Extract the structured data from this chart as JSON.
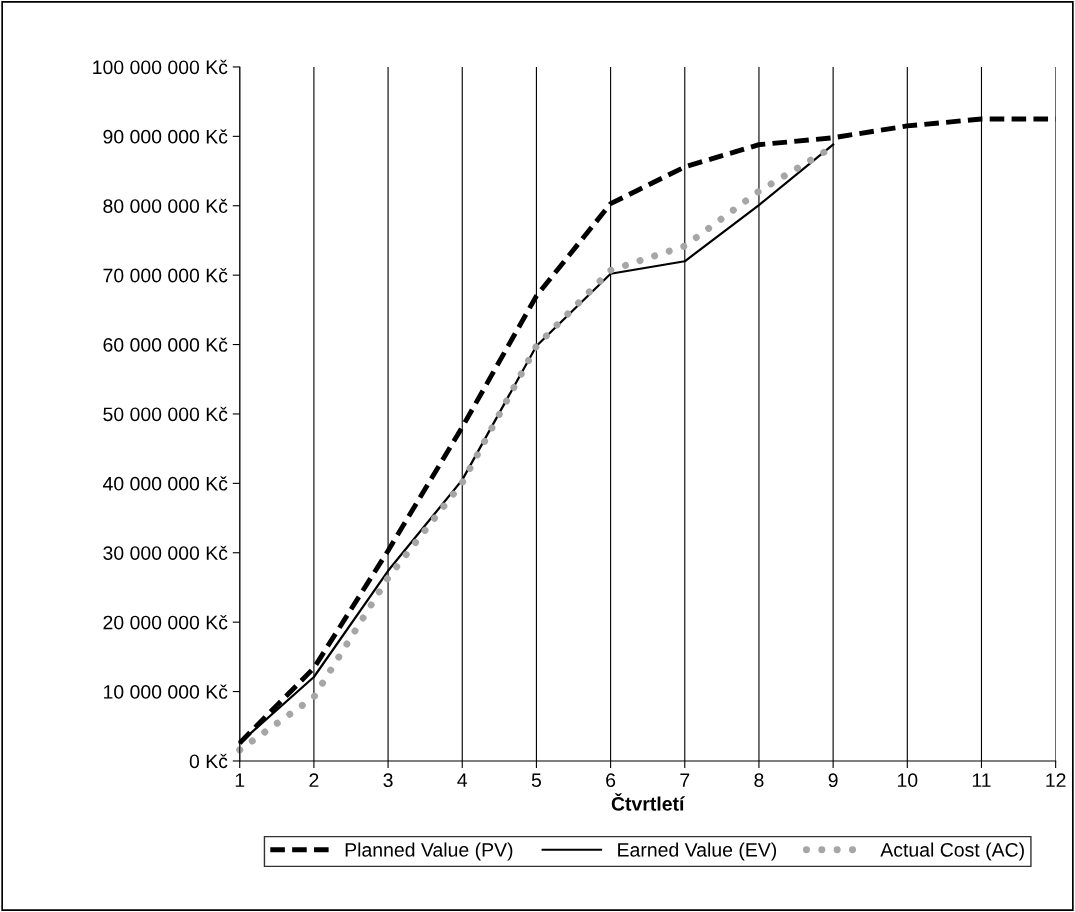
{
  "chart_data": {
    "type": "line",
    "xlabel": "Čtvrtletí",
    "x": [
      1,
      2,
      3,
      4,
      5,
      6,
      7,
      8,
      9,
      10,
      11,
      12
    ],
    "series": [
      {
        "name": "Planned Value (PV)",
        "color": "#000000",
        "line_style": "dashed",
        "values": [
          2600000,
          13400000,
          30300000,
          48100000,
          67000000,
          80300000,
          85600000,
          88800000,
          89800000,
          91500000,
          92500000,
          92500000
        ]
      },
      {
        "name": "Earned Value (EV)",
        "color": "#000000",
        "line_style": "solid",
        "values": [
          2600000,
          12100000,
          27400000,
          40500000,
          59800000,
          70200000,
          72000000,
          80100000,
          88800000,
          null,
          null,
          null
        ]
      },
      {
        "name": "Actual Cost (AC)",
        "color": "#a6a6a6",
        "line_style": "dotted",
        "values": [
          1600000,
          9200000,
          26400000,
          40100000,
          59800000,
          70700000,
          74200000,
          82100000,
          88500000,
          null,
          null,
          null
        ]
      }
    ],
    "xlim": [
      1,
      12
    ],
    "xticks": [
      1,
      2,
      3,
      4,
      5,
      6,
      7,
      8,
      9,
      10,
      11,
      12
    ],
    "ylim": [
      0,
      100000000
    ],
    "yticks": [
      {
        "value": 0,
        "label": "0 Kč"
      },
      {
        "value": 10000000,
        "label": "10 000 000 Kč"
      },
      {
        "value": 20000000,
        "label": "20 000 000 Kč"
      },
      {
        "value": 30000000,
        "label": "30 000 000 Kč"
      },
      {
        "value": 40000000,
        "label": "40 000 000 Kč"
      },
      {
        "value": 50000000,
        "label": "50 000 000 Kč"
      },
      {
        "value": 60000000,
        "label": "60 000 000 Kč"
      },
      {
        "value": 70000000,
        "label": "70 000 000 Kč"
      },
      {
        "value": 80000000,
        "label": "80 000 000 Kč"
      },
      {
        "value": 90000000,
        "label": "90 000 000 Kč"
      },
      {
        "value": 100000000,
        "label": "100 000 000 Kč"
      }
    ],
    "grid": "x",
    "legend": "bottom",
    "marker": "none"
  }
}
